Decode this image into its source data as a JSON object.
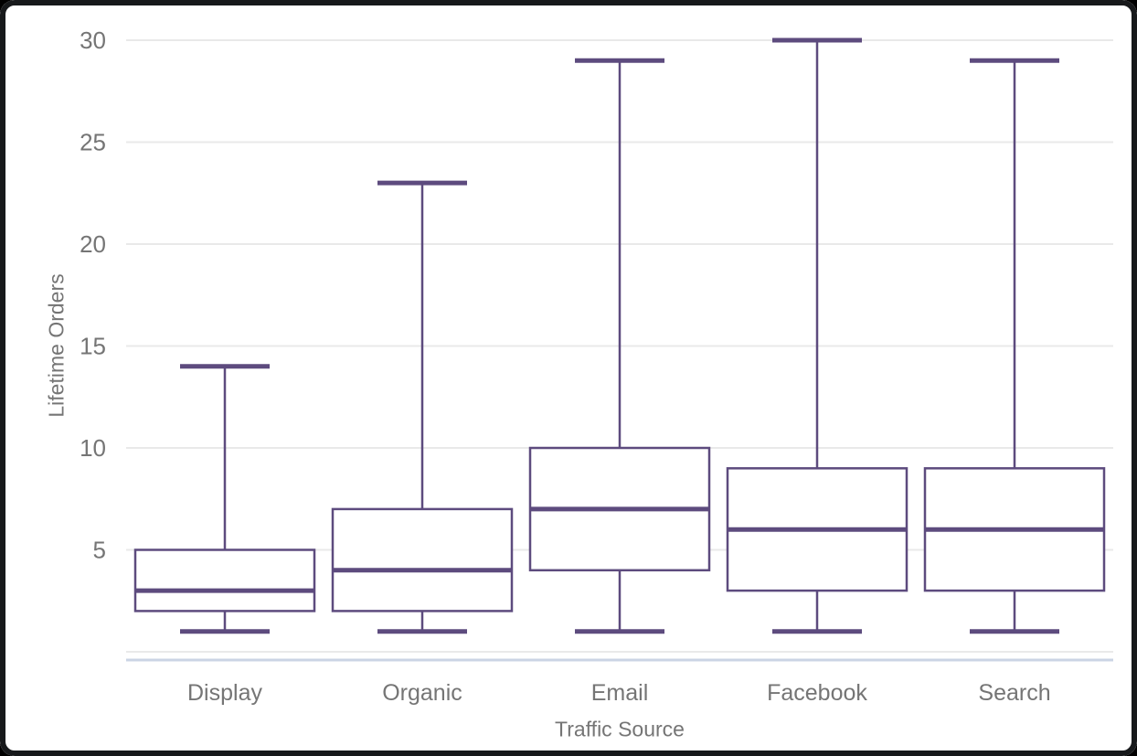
{
  "chart_data": {
    "type": "boxplot",
    "title": "",
    "xlabel": "Traffic Source",
    "ylabel": "Lifetime Orders",
    "categories": [
      "Display",
      "Organic",
      "Email",
      "Facebook",
      "Search"
    ],
    "yticks": [
      5,
      10,
      15,
      20,
      25,
      30
    ],
    "ylim": [
      0,
      31
    ],
    "grid": true,
    "legend": false,
    "boxes": [
      {
        "category": "Display",
        "min": 1,
        "q1": 2,
        "median": 3,
        "q3": 5,
        "max": 14
      },
      {
        "category": "Organic",
        "min": 1,
        "q1": 2,
        "median": 4,
        "q3": 7,
        "max": 23
      },
      {
        "category": "Email",
        "min": 1,
        "q1": 4,
        "median": 7,
        "q3": 10,
        "max": 29
      },
      {
        "category": "Facebook",
        "min": 1,
        "q1": 3,
        "median": 6,
        "q3": 9,
        "max": 30
      },
      {
        "category": "Search",
        "min": 1,
        "q1": 3,
        "median": 6,
        "q3": 9,
        "max": 29
      }
    ],
    "colors": {
      "box_stroke": "#5D4B7E",
      "grid_line": "#E9E9E9",
      "axis_line": "#CBD4E4",
      "label_text": "#757575",
      "frame": "#17191B",
      "background": "#FFFFFF"
    }
  }
}
